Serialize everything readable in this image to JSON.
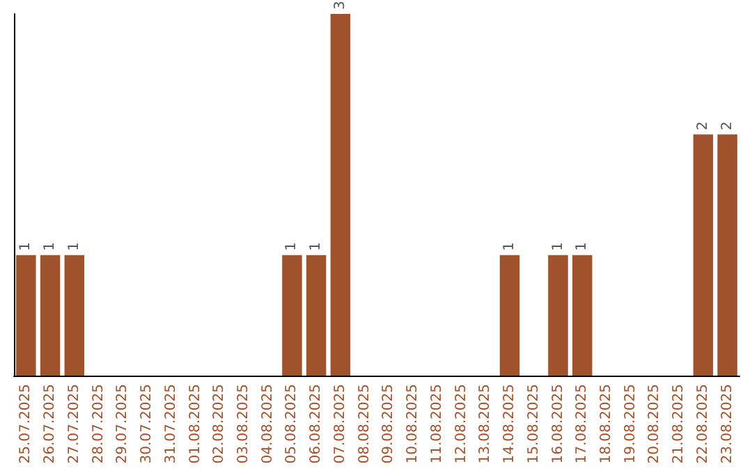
{
  "chart_data": {
    "type": "bar",
    "categories": [
      "25.07.2025",
      "26.07.2025",
      "27.07.2025",
      "28.07.2025",
      "29.07.2025",
      "30.07.2025",
      "31.07.2025",
      "01.08.2025",
      "02.08.2025",
      "03.08.2025",
      "04.08.2025",
      "05.08.2025",
      "06.08.2025",
      "07.08.2025",
      "08.08.2025",
      "09.08.2025",
      "10.08.2025",
      "11.08.2025",
      "12.08.2025",
      "13.08.2025",
      "14.08.2025",
      "15.08.2025",
      "16.08.2025",
      "17.08.2025",
      "18.08.2025",
      "19.08.2025",
      "20.08.2025",
      "21.08.2025",
      "22.08.2025",
      "23.08.2025"
    ],
    "values": [
      1,
      1,
      1,
      0,
      0,
      0,
      0,
      0,
      0,
      0,
      0,
      1,
      1,
      3,
      0,
      0,
      0,
      0,
      0,
      0,
      1,
      0,
      1,
      1,
      0,
      0,
      0,
      0,
      2,
      2
    ],
    "value_labels": [
      "1",
      "1",
      "1",
      null,
      null,
      null,
      null,
      null,
      null,
      null,
      null,
      "1",
      "1",
      "3",
      null,
      null,
      null,
      null,
      null,
      null,
      "1",
      null,
      "1",
      "1",
      null,
      null,
      null,
      null,
      "2",
      "2"
    ],
    "color": "#a0522d",
    "ylim": [
      0,
      3
    ],
    "tick_labels": "x"
  }
}
